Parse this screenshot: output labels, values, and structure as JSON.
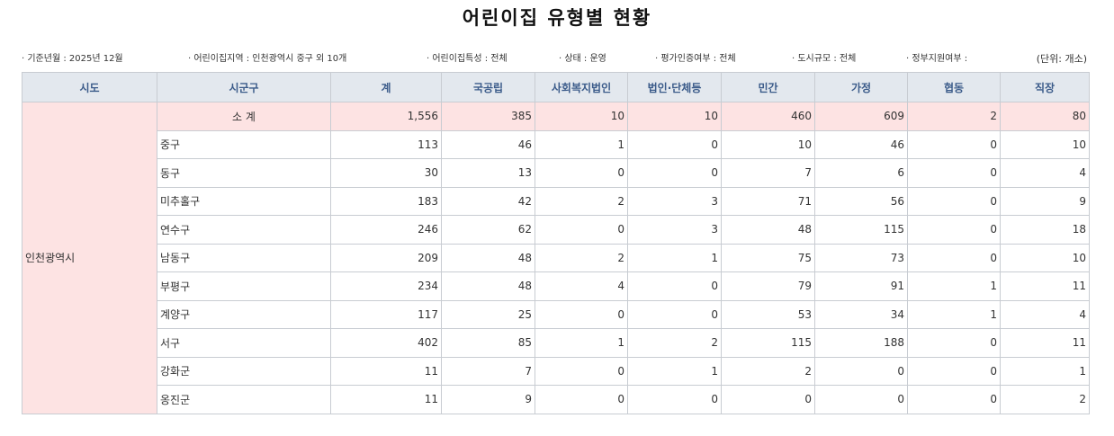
{
  "title": "어린이집 유형별 현황",
  "filters": [
    "· 기준년월 : 2025년 12월",
    "· 어린이집지역 : 인천광역시 중구 외 10개",
    "· 어린이집특성 : 전체",
    "· 상태 : 운영",
    "· 평가인증여부 : 전체",
    "· 도시규모 : 전체",
    "· 정부지원여부 :"
  ],
  "unit": "(단위: 개소)",
  "table": {
    "headers": [
      "시도",
      "시군구",
      "계",
      "국공립",
      "사회복지법인",
      "법인·단체등",
      "민간",
      "가정",
      "협동",
      "직장"
    ],
    "sido": "인천광역시",
    "subtotal": {
      "label": "소 계",
      "values": [
        "1,556",
        "385",
        "10",
        "10",
        "460",
        "609",
        "2",
        "80"
      ]
    },
    "rows": [
      {
        "name": "중구",
        "values": [
          "113",
          "46",
          "1",
          "0",
          "10",
          "46",
          "0",
          "10"
        ]
      },
      {
        "name": "동구",
        "values": [
          "30",
          "13",
          "0",
          "0",
          "7",
          "6",
          "0",
          "4"
        ]
      },
      {
        "name": "미추홀구",
        "values": [
          "183",
          "42",
          "2",
          "3",
          "71",
          "56",
          "0",
          "9"
        ]
      },
      {
        "name": "연수구",
        "values": [
          "246",
          "62",
          "0",
          "3",
          "48",
          "115",
          "0",
          "18"
        ]
      },
      {
        "name": "남동구",
        "values": [
          "209",
          "48",
          "2",
          "1",
          "75",
          "73",
          "0",
          "10"
        ]
      },
      {
        "name": "부평구",
        "values": [
          "234",
          "48",
          "4",
          "0",
          "79",
          "91",
          "1",
          "11"
        ]
      },
      {
        "name": "계양구",
        "values": [
          "117",
          "25",
          "0",
          "0",
          "53",
          "34",
          "1",
          "4"
        ]
      },
      {
        "name": "서구",
        "values": [
          "402",
          "85",
          "1",
          "2",
          "115",
          "188",
          "0",
          "11"
        ]
      },
      {
        "name": "강화군",
        "values": [
          "11",
          "7",
          "0",
          "1",
          "2",
          "0",
          "0",
          "1"
        ]
      },
      {
        "name": "옹진군",
        "values": [
          "11",
          "9",
          "0",
          "0",
          "0",
          "0",
          "0",
          "2"
        ]
      }
    ]
  },
  "colors": {
    "header_bg": "#e3e8ee",
    "header_text": "#3b5b8a",
    "subtotal_bg": "#fde3e3",
    "border": "#c8ccd2"
  }
}
